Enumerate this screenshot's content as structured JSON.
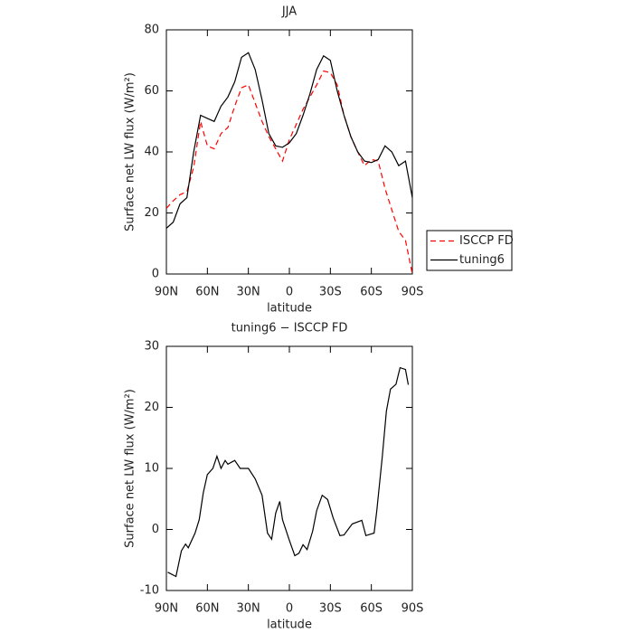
{
  "chart_data": [
    {
      "type": "line",
      "title": "JJA",
      "x_label": "latitude",
      "y_label": "Surface net LW flux (W/m²)",
      "x": [
        90,
        85,
        80,
        75,
        70,
        65,
        60,
        55,
        50,
        45,
        40,
        35,
        30,
        25,
        20,
        15,
        10,
        5,
        0,
        -5,
        -10,
        -15,
        -20,
        -25,
        -30,
        -35,
        -40,
        -45,
        -50,
        -55,
        -60,
        -65,
        -70,
        -75,
        -80,
        -85,
        -90
      ],
      "series": [
        {
          "name": "ISCCP FD",
          "color": "#ff0000",
          "style": "dashed",
          "values": [
            21.5,
            24,
            26,
            27,
            35,
            50,
            42,
            41,
            46,
            48,
            55,
            61,
            62,
            56,
            50,
            45,
            41,
            37,
            44,
            49,
            54,
            58,
            62,
            66.5,
            66,
            62,
            52,
            45,
            40,
            35.5,
            37.5,
            37,
            28,
            21,
            14,
            11,
            0
          ]
        },
        {
          "name": "tuning6",
          "color": "#000000",
          "style": "solid",
          "values": [
            15,
            17,
            23,
            25,
            40,
            52,
            51,
            50,
            55,
            58,
            63,
            71,
            72.5,
            67,
            57,
            46,
            42,
            41.5,
            43,
            46,
            52,
            59,
            67,
            71.5,
            70,
            60,
            52,
            45,
            40,
            37,
            36.5,
            37.5,
            42,
            40,
            35.5,
            37,
            25
          ]
        }
      ],
      "xlim": [
        90,
        -90
      ],
      "xticks": [
        {
          "value": 90,
          "label": "90N"
        },
        {
          "value": 60,
          "label": "60N"
        },
        {
          "value": 30,
          "label": "30N"
        },
        0,
        {
          "value": -30,
          "label": "30S"
        },
        {
          "value": -60,
          "label": "60S"
        },
        {
          "value": -90,
          "label": "90S"
        }
      ],
      "ylim": [
        0,
        80
      ],
      "yticks": [
        0,
        20,
        40,
        60,
        80
      ],
      "legend": "right"
    },
    {
      "type": "line",
      "title": "tuning6 − ISCCP FD",
      "x_label": "latitude",
      "y_label": "Surface net LW flux (W/m²)",
      "x": [
        89,
        83,
        79,
        76,
        74,
        69,
        66,
        63,
        60,
        56,
        53,
        50,
        47,
        45,
        40,
        36,
        30,
        25,
        20,
        16,
        13,
        10,
        7,
        5,
        0,
        -4,
        -7,
        -10,
        -13,
        -17,
        -20,
        -24,
        -28,
        -32,
        -37,
        -40,
        -46,
        -53,
        -56,
        -62,
        -64,
        -68,
        -71,
        -74,
        -78,
        -81,
        -85,
        -87
      ],
      "values": [
        -7,
        -7.7,
        -3.5,
        -2.4,
        -3,
        -0.6,
        1.6,
        6,
        9,
        10,
        12,
        10,
        11.3,
        10.7,
        11.3,
        10,
        10,
        8.3,
        5.6,
        -0.6,
        -1.6,
        2.7,
        4.6,
        1.6,
        -1.8,
        -4.3,
        -3.9,
        -2.5,
        -3.3,
        -0.3,
        3.1,
        5.6,
        4.9,
        1.9,
        -1,
        -0.9,
        0.9,
        1.5,
        -1,
        -0.6,
        3.1,
        12,
        19.4,
        23,
        23.8,
        26.5,
        26.2,
        23.7
      ],
      "color": "#000000",
      "style": "solid",
      "xlim": [
        90,
        -90
      ],
      "xticks": [
        {
          "value": 90,
          "label": "90N"
        },
        {
          "value": 60,
          "label": "60N"
        },
        {
          "value": 30,
          "label": "30N"
        },
        0,
        {
          "value": -30,
          "label": "30S"
        },
        {
          "value": -60,
          "label": "60S"
        },
        {
          "value": -90,
          "label": "90S"
        }
      ],
      "ylim": [
        -10,
        30
      ],
      "yticks": [
        -10,
        0,
        10,
        20,
        30
      ]
    }
  ]
}
